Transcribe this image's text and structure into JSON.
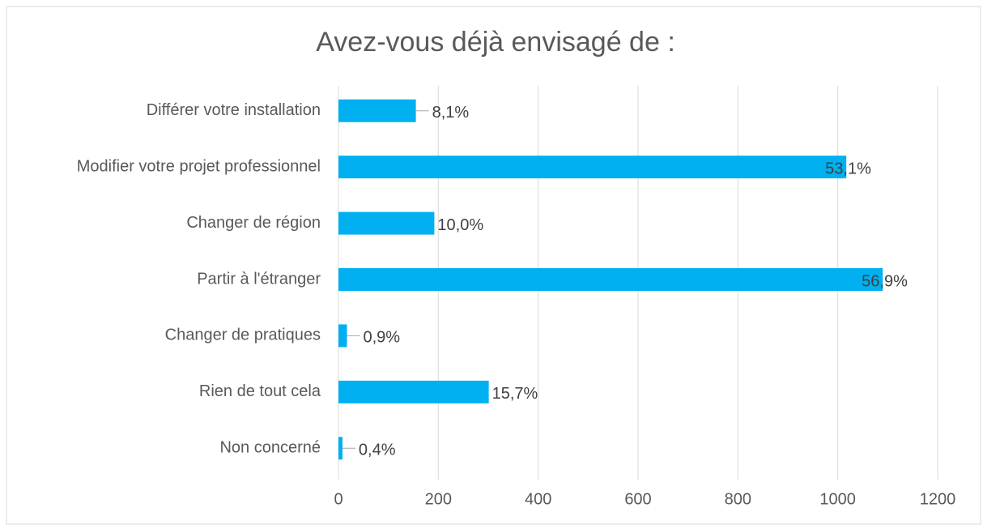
{
  "chart_data": {
    "type": "bar",
    "orientation": "horizontal",
    "title": "Avez-vous déjà envisagé de :",
    "categories": [
      "Différer votre installation",
      "Modifier votre projet professionnel",
      "Changer de région",
      "Partir à l'étranger",
      "Changer de pratiques",
      "Rien de tout cela",
      "Non concerné"
    ],
    "values": [
      155,
      1017,
      192,
      1090,
      17,
      301,
      8
    ],
    "value_labels": [
      "8,1%",
      "53,1%",
      "10,0%",
      "56,9%",
      "0,9%",
      "15,7%",
      "0,4%"
    ],
    "color": "#00b0f0",
    "xlim": [
      0,
      1200
    ],
    "xticks": [
      0,
      200,
      400,
      600,
      800,
      1000,
      1200
    ],
    "grid": true
  }
}
